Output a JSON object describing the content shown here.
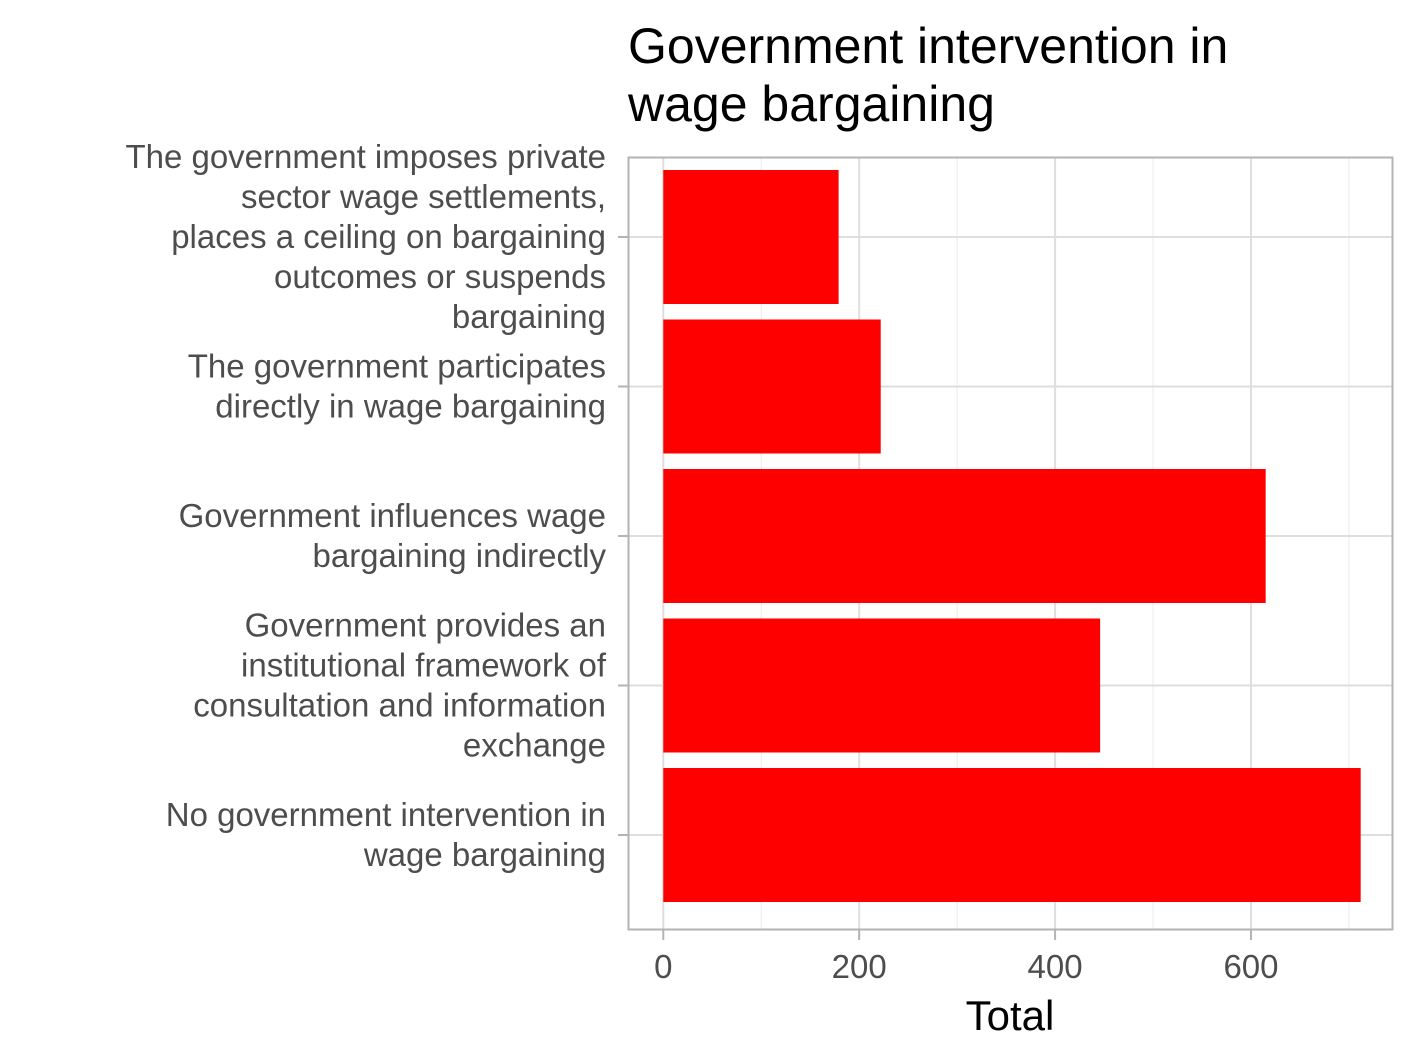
{
  "chart_data": {
    "type": "bar",
    "orientation": "horizontal",
    "title": "Government intervention in wage bargaining",
    "xlabel": "Total",
    "ylabel": "",
    "xlim": [
      -35,
      745
    ],
    "x_ticks": [
      0,
      200,
      400,
      600
    ],
    "x_tick_labels": [
      "0",
      "200",
      "400",
      "600"
    ],
    "grid": true,
    "bar_color": "#ff0000",
    "categories": [
      "The government imposes private sector wage settlements, places a ceiling on bargaining outcomes or suspends bargaining",
      "The government participates directly in wage bargaining",
      "Government influences wage bargaining indirectly",
      "Government provides an institutional framework of consultation and information exchange",
      "No government intervention in wage bargaining"
    ],
    "category_label_lines": [
      [
        "The government imposes private",
        "sector wage settlements,",
        "places a ceiling on bargaining",
        "outcomes or suspends",
        "bargaining"
      ],
      [
        "The government participates",
        "directly in wage bargaining"
      ],
      [
        "Government influences wage",
        "bargaining indirectly"
      ],
      [
        "Government provides an",
        "institutional framework of",
        "consultation and information",
        "exchange"
      ],
      [
        "No government intervention in",
        "wage bargaining"
      ]
    ],
    "values": [
      179,
      222,
      615,
      446,
      712
    ]
  }
}
